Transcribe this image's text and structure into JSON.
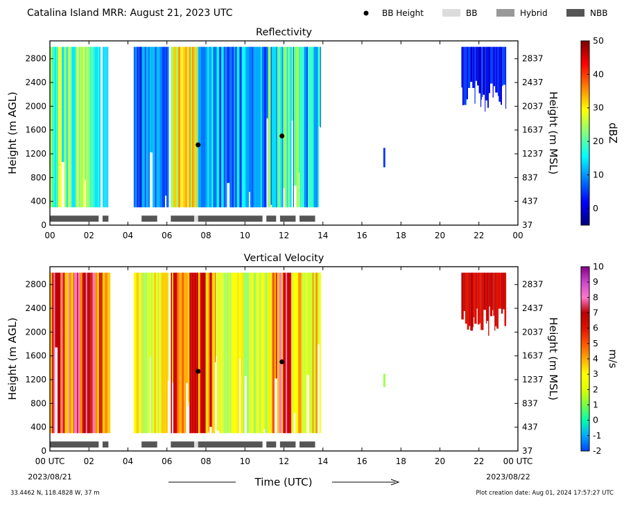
{
  "header": {
    "title": "Catalina Island MRR:  August 21, 2023 UTC"
  },
  "legend": [
    {
      "label": "BB Height",
      "kind": "dot",
      "color": "#000000"
    },
    {
      "label": "BB",
      "kind": "rect",
      "color": "#dcdcdc"
    },
    {
      "label": "Hybrid",
      "kind": "rect",
      "color": "#999999"
    },
    {
      "label": "NBB",
      "kind": "rect",
      "color": "#555555"
    }
  ],
  "x_axis": {
    "ticks": [
      "00",
      "02",
      "04",
      "06",
      "08",
      "10",
      "12",
      "14",
      "16",
      "18",
      "20",
      "22",
      "00"
    ],
    "bottom_ticks": [
      "00 UTC",
      "02",
      "04",
      "06",
      "08",
      "10",
      "12",
      "14",
      "16",
      "18",
      "20",
      "22",
      "00 UTC"
    ],
    "start_date": "2023/08/21",
    "end_date": "2023/08/22",
    "label": "Time (UTC)"
  },
  "footer": {
    "location": "33.4462 N, 118.4828 W, 37 m",
    "creation_date": "Plot creation date: Aug 01, 2024 17:57:27 UTC"
  },
  "chart_data": [
    {
      "type": "heatmap",
      "title": "Reflectivity",
      "ylabel": "Height (m AGL)",
      "ylabel_right": "Height (m MSL)",
      "yticks": [
        0,
        400,
        800,
        1200,
        1600,
        2000,
        2400,
        2800
      ],
      "yticks_right": [
        37,
        437,
        837,
        1237,
        1637,
        2037,
        2437,
        2837
      ],
      "xlim": [
        0,
        24
      ],
      "ylim": [
        0,
        3100
      ],
      "colorbar": {
        "label": "dBZ",
        "ticks": [
          0,
          10,
          20,
          30,
          40,
          50
        ],
        "range": [
          -5,
          50
        ],
        "colors": [
          "#00007f",
          "#0000ff",
          "#007fff",
          "#00ffff",
          "#7fff7f",
          "#ffff00",
          "#ff7f00",
          "#ff0000",
          "#7f0000"
        ]
      },
      "bb_height_points": [
        {
          "x": 7.6,
          "y": 1350
        },
        {
          "x": 11.9,
          "y": 1500
        }
      ],
      "classification": [
        {
          "start": 0.0,
          "end": 2.5,
          "class": "NBB"
        },
        {
          "start": 2.7,
          "end": 3.0,
          "class": "NBB"
        },
        {
          "start": 4.7,
          "end": 5.5,
          "class": "NBB"
        },
        {
          "start": 6.2,
          "end": 7.4,
          "class": "NBB"
        },
        {
          "start": 7.4,
          "end": 7.6,
          "class": "BB"
        },
        {
          "start": 7.6,
          "end": 10.9,
          "class": "NBB"
        },
        {
          "start": 11.1,
          "end": 11.6,
          "class": "NBB"
        },
        {
          "start": 11.8,
          "end": 12.6,
          "class": "NBB"
        },
        {
          "start": 12.8,
          "end": 13.6,
          "class": "NBB"
        }
      ]
    },
    {
      "type": "heatmap",
      "title": "Vertical Velocity",
      "ylabel": "Height (m AGL)",
      "ylabel_right": "Height (m MSL)",
      "yticks": [
        0,
        400,
        800,
        1200,
        1600,
        2000,
        2400,
        2800
      ],
      "yticks_right": [
        37,
        437,
        837,
        1237,
        1637,
        2037,
        2437,
        2837
      ],
      "xlim": [
        0,
        24
      ],
      "ylim": [
        0,
        3100
      ],
      "colorbar": {
        "label": "m/s",
        "ticks": [
          -2,
          -1,
          0,
          1,
          2,
          3,
          4,
          5,
          6,
          7,
          8,
          9,
          10
        ],
        "range": [
          -2,
          10
        ],
        "colors": [
          "#0044ff",
          "#00aaff",
          "#00ffaa",
          "#77ff44",
          "#ddff00",
          "#ffff00",
          "#ffaa00",
          "#ff5500",
          "#dd1100",
          "#bb0000",
          "#ff77cc",
          "#cc44cc",
          "#880088"
        ]
      },
      "bb_height_points": [
        {
          "x": 7.6,
          "y": 1340
        },
        {
          "x": 11.9,
          "y": 1500
        }
      ],
      "classification": [
        {
          "start": 0.0,
          "end": 2.5,
          "class": "NBB"
        },
        {
          "start": 2.7,
          "end": 3.0,
          "class": "NBB"
        },
        {
          "start": 4.7,
          "end": 5.5,
          "class": "NBB"
        },
        {
          "start": 6.2,
          "end": 7.4,
          "class": "NBB"
        },
        {
          "start": 7.4,
          "end": 7.6,
          "class": "BB"
        },
        {
          "start": 7.6,
          "end": 10.9,
          "class": "NBB"
        },
        {
          "start": 11.1,
          "end": 11.6,
          "class": "NBB"
        },
        {
          "start": 11.8,
          "end": 12.6,
          "class": "NBB"
        },
        {
          "start": 12.8,
          "end": 13.6,
          "class": "NBB"
        }
      ]
    }
  ]
}
